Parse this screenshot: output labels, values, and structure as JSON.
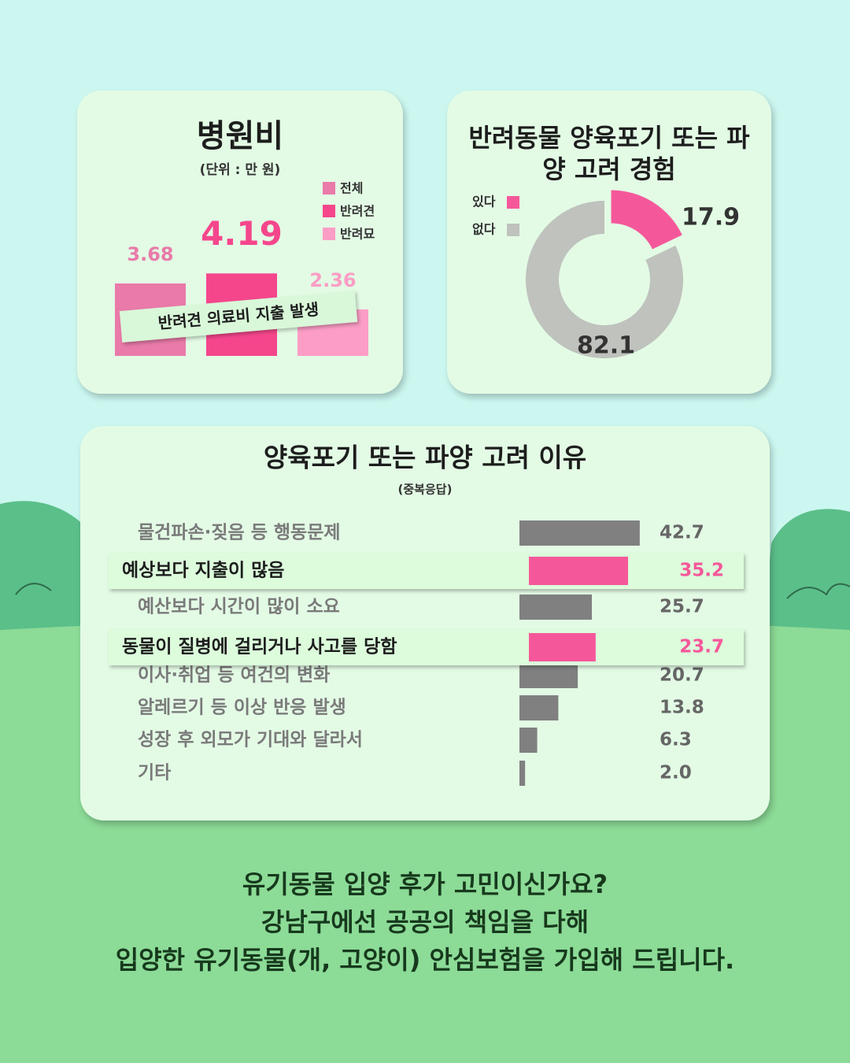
{
  "chart_data": [
    {
      "type": "bar",
      "title": "병원비",
      "subtitle": "(단위 : 만 원)",
      "categories": [
        "전체",
        "반려견",
        "반려묘"
      ],
      "values": [
        3.68,
        4.19,
        2.36
      ],
      "colors": [
        "#e97aa9",
        "#f5468c",
        "#fb9dc5"
      ],
      "annotation": "반려견 의료비 지출 발생"
    },
    {
      "type": "pie",
      "title": "반려동물 양육포기 또는 파양 고려 경험",
      "categories": [
        "있다",
        "없다"
      ],
      "values": [
        17.9,
        82.1
      ],
      "colors": [
        "#f5589a",
        "#bfc2bd"
      ],
      "donut": true
    },
    {
      "type": "hbar",
      "title": "양육포기 또는 파양 고려 이유",
      "subtitle": "(중복응답)",
      "categories": [
        "물건파손·짖음 등 행동문제",
        "예상보다 지출이 많음",
        "예산보다 시간이 많이 소요",
        "동물이 질병에 걸리거나 사고를 당함",
        "이사·취업 등 여건의 변화",
        "알레르기 등 이상 반응 발생",
        "성장 후 외모가 기대와 달라서",
        "기타"
      ],
      "values": [
        42.7,
        35.2,
        25.7,
        23.7,
        20.7,
        13.8,
        6.3,
        2.0
      ],
      "value_labels": [
        "42.7",
        "35.2",
        "25.7",
        "23.7",
        "20.7",
        "13.8",
        "6.3",
        "2.0"
      ],
      "colors": [
        "#808080",
        "#f5589a",
        "#808080",
        "#f5589a",
        "#808080",
        "#808080",
        "#808080",
        "#808080"
      ]
    }
  ],
  "footer": {
    "lines": [
      "유기동물 입양 후가 고민이신가요?",
      "강남구에선 공공의 책임을 다해",
      "입양한 유기동물(개, 고양이) 안심보험을 가입해 드립니다."
    ]
  }
}
